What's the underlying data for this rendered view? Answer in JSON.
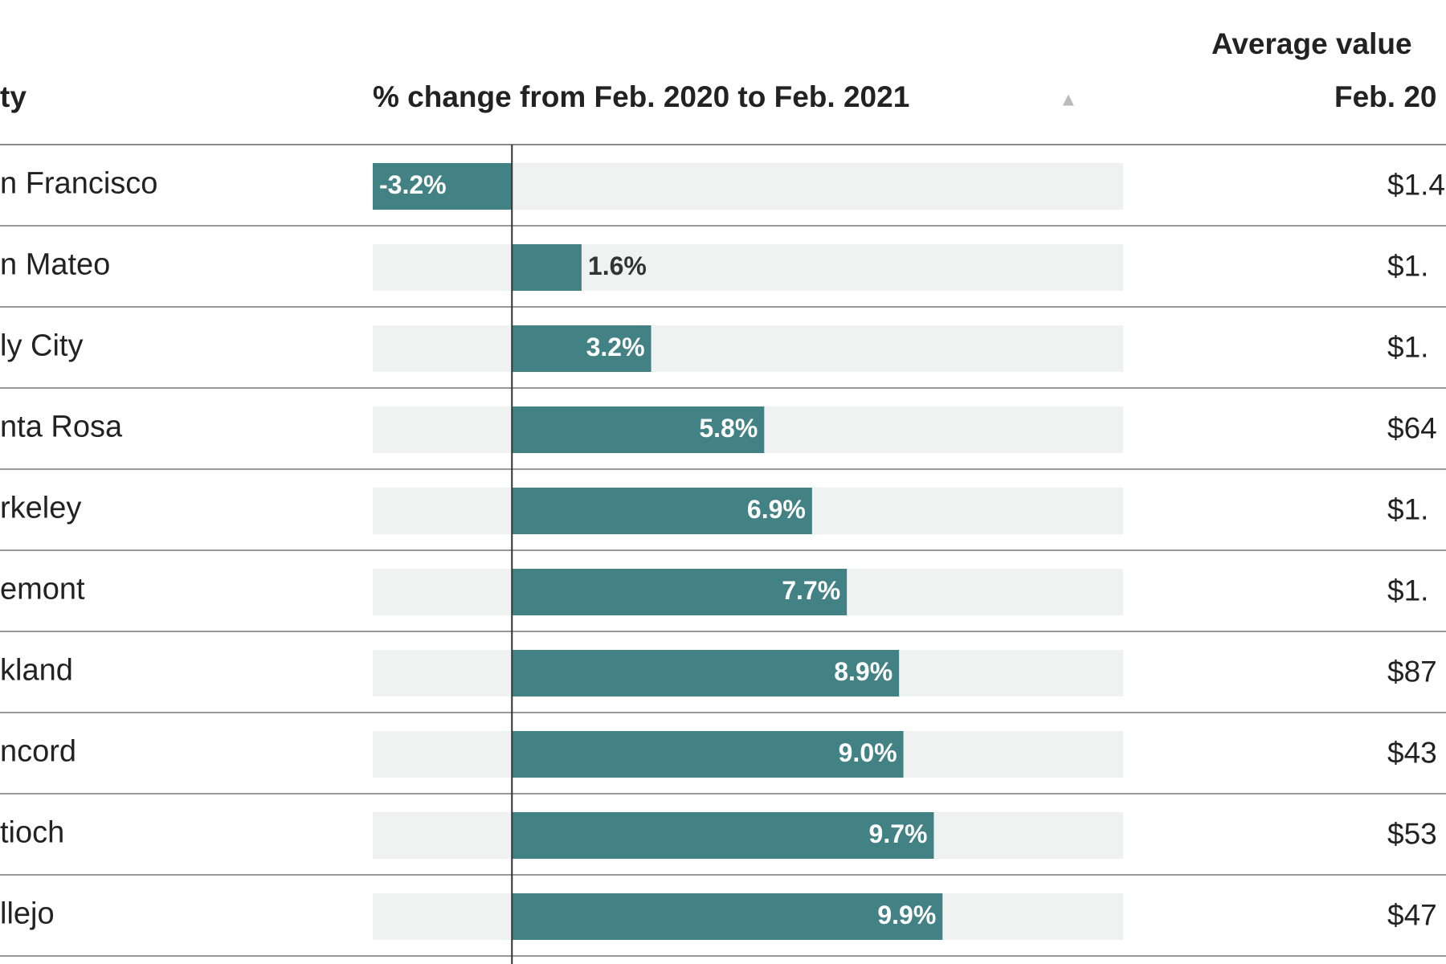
{
  "table": {
    "headers": {
      "city": "ty",
      "change": "% change from Feb. 2020 to Feb. 2021",
      "average_line1": "Average value",
      "average_line2": "Feb. 20"
    },
    "xlim": [
      -3.2,
      14.05
    ],
    "bar_color": "#428285",
    "track_color": "#f0f1f1",
    "rows": [
      {
        "city": "n Francisco",
        "change": -3.2,
        "change_label": "-3.2%",
        "average": "$1.4"
      },
      {
        "city": "n Mateo",
        "change": 1.6,
        "change_label": "1.6%",
        "average": "$1."
      },
      {
        "city": "ly City",
        "change": 3.2,
        "change_label": "3.2%",
        "average": "$1."
      },
      {
        "city": "nta Rosa",
        "change": 5.8,
        "change_label": "5.8%",
        "average": "$64"
      },
      {
        "city": "rkeley",
        "change": 6.9,
        "change_label": "6.9%",
        "average": "$1."
      },
      {
        "city": "emont",
        "change": 7.7,
        "change_label": "7.7%",
        "average": "$1."
      },
      {
        "city": "kland",
        "change": 8.9,
        "change_label": "8.9%",
        "average": "$87"
      },
      {
        "city": "ncord",
        "change": 9.0,
        "change_label": "9.0%",
        "average": "$43"
      },
      {
        "city": "tioch",
        "change": 9.7,
        "change_label": "9.7%",
        "average": "$53"
      },
      {
        "city": "llejo",
        "change": 9.9,
        "change_label": "9.9%",
        "average": "$47"
      }
    ]
  }
}
